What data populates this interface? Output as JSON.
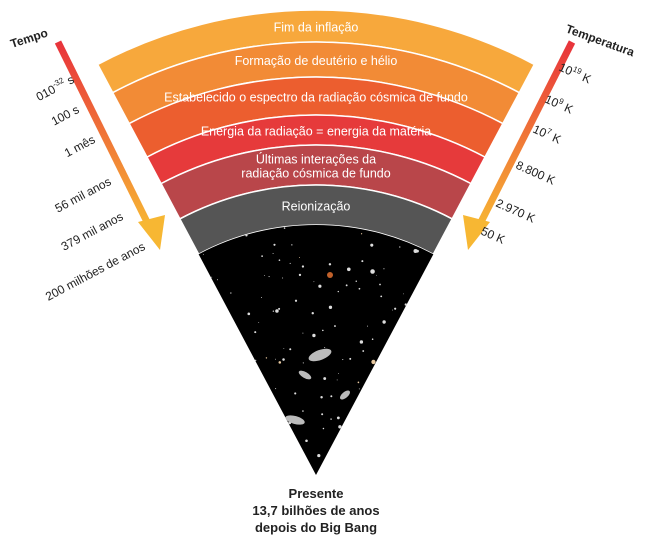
{
  "title_left": "Tempo",
  "title_right": "Temperatura",
  "bands": [
    "Fim da inflação",
    "Formação de deutério e hélio",
    "Estabelecido o espectro da radiação cósmica de fundo",
    "Energia da radiação = energia da matéria",
    [
      "Últimas interações da",
      "radiação cósmica de fundo"
    ],
    "Reionização"
  ],
  "times": [
    {
      "base": "010",
      "sup": "-32",
      "after": " s"
    },
    {
      "base": "100 s"
    },
    {
      "base": "1 mês"
    },
    {
      "base": "56 mil anos"
    },
    {
      "base": "379 mil anos"
    },
    {
      "base": "200 milhões de anos"
    }
  ],
  "temperatures": [
    {
      "base": "10",
      "sup": "19",
      "after": " K"
    },
    {
      "base": "10",
      "sup": "9",
      "after": " K"
    },
    {
      "base": "10",
      "sup": "7",
      "after": " K"
    },
    {
      "base": "8.800 K"
    },
    {
      "base": "2.970 K"
    },
    {
      "base": "50 K"
    }
  ],
  "footer": [
    "Presente",
    "13,7 bilhões de anos",
    "depois do Big Bang"
  ]
}
